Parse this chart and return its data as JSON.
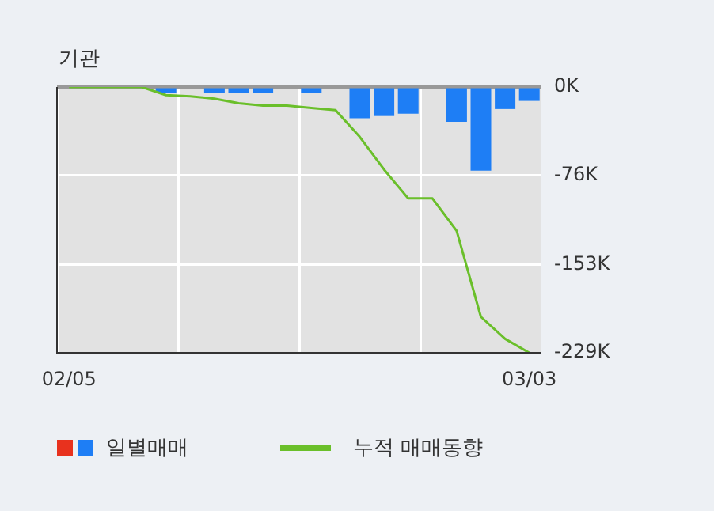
{
  "chart_data": {
    "type": "bar",
    "title": "기관",
    "categories": [
      "02/05",
      null,
      null,
      null,
      null,
      null,
      null,
      null,
      null,
      null,
      null,
      null,
      null,
      null,
      null,
      null,
      null,
      null,
      null,
      "03/03"
    ],
    "series": [
      {
        "name": "일별매매",
        "color": "#1e7ef5",
        "values": [
          0,
          0,
          0,
          0,
          -5,
          0,
          -5,
          -5,
          -5,
          0,
          -5,
          0,
          -27,
          -25,
          -23,
          0,
          -30,
          -72,
          -19,
          -12
        ]
      },
      {
        "name": "누적 매매동향",
        "type": "line",
        "color": "#6abf2a",
        "values": [
          0,
          0,
          0,
          0,
          -7,
          -8,
          -10,
          -14,
          -16,
          -16,
          -18,
          -20,
          -43,
          -71,
          -96,
          -96,
          -124,
          -198,
          -217,
          -229
        ]
      }
    ],
    "ylim": [
      -229,
      0
    ],
    "yticks": [
      {
        "value": 0,
        "label": "0K"
      },
      {
        "value": -76,
        "label": "-76K"
      },
      {
        "value": -153,
        "label": "-153K"
      },
      {
        "value": -229,
        "label": "-229K"
      }
    ],
    "grid": true,
    "legend": "bottom",
    "marker": "none"
  }
}
